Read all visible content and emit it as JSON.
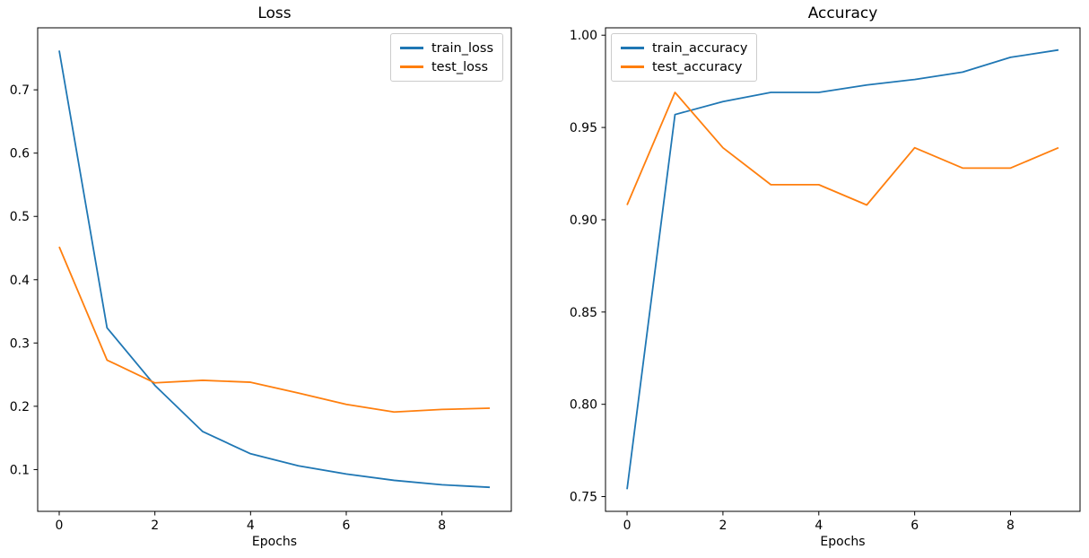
{
  "figure": {
    "background": "#ffffff",
    "accent_blue": "#1f77b4",
    "accent_orange": "#ff7f0e"
  },
  "chart_data": [
    {
      "type": "line",
      "title": "Loss",
      "xlabel": "Epochs",
      "ylabel": "",
      "grid": false,
      "x": [
        0,
        1,
        2,
        3,
        4,
        5,
        6,
        7,
        8,
        9
      ],
      "series": [
        {
          "name": "train_loss",
          "color": "#1f77b4",
          "values": [
            0.762,
            0.324,
            0.233,
            0.16,
            0.125,
            0.106,
            0.093,
            0.083,
            0.076,
            0.072
          ]
        },
        {
          "name": "test_loss",
          "color": "#ff7f0e",
          "values": [
            0.452,
            0.273,
            0.237,
            0.241,
            0.238,
            0.221,
            0.203,
            0.191,
            0.195,
            0.197
          ]
        }
      ],
      "xlim": [
        -0.45,
        9.45
      ],
      "ylim": [
        0.034,
        0.798
      ],
      "xticks": {
        "values": [
          0,
          2,
          4,
          6,
          8
        ],
        "labels": [
          "0",
          "2",
          "4",
          "6",
          "8"
        ]
      },
      "yticks": {
        "values": [
          0.1,
          0.2,
          0.3,
          0.4,
          0.5,
          0.6,
          0.7
        ],
        "labels": [
          "0.1",
          "0.2",
          "0.3",
          "0.4",
          "0.5",
          "0.6",
          "0.7"
        ]
      },
      "legend": {
        "position": "upper-right",
        "entries": [
          "train_loss",
          "test_loss"
        ]
      }
    },
    {
      "type": "line",
      "title": "Accuracy",
      "xlabel": "Epochs",
      "ylabel": "",
      "grid": false,
      "x": [
        0,
        1,
        2,
        3,
        4,
        5,
        6,
        7,
        8,
        9
      ],
      "series": [
        {
          "name": "train_accuracy",
          "color": "#1f77b4",
          "values": [
            0.754,
            0.957,
            0.964,
            0.969,
            0.969,
            0.973,
            0.976,
            0.98,
            0.988,
            0.992
          ]
        },
        {
          "name": "test_accuracy",
          "color": "#ff7f0e",
          "values": [
            0.908,
            0.969,
            0.939,
            0.919,
            0.919,
            0.908,
            0.939,
            0.928,
            0.928,
            0.939
          ]
        }
      ],
      "xlim": [
        -0.45,
        9.45
      ],
      "ylim": [
        0.742,
        1.004
      ],
      "xticks": {
        "values": [
          0,
          2,
          4,
          6,
          8
        ],
        "labels": [
          "0",
          "2",
          "4",
          "6",
          "8"
        ]
      },
      "yticks": {
        "values": [
          0.75,
          0.8,
          0.85,
          0.9,
          0.95,
          1.0
        ],
        "labels": [
          "0.75",
          "0.80",
          "0.85",
          "0.90",
          "0.95",
          "1.00"
        ]
      },
      "legend": {
        "position": "upper-left",
        "entries": [
          "train_accuracy",
          "test_accuracy"
        ]
      }
    }
  ]
}
